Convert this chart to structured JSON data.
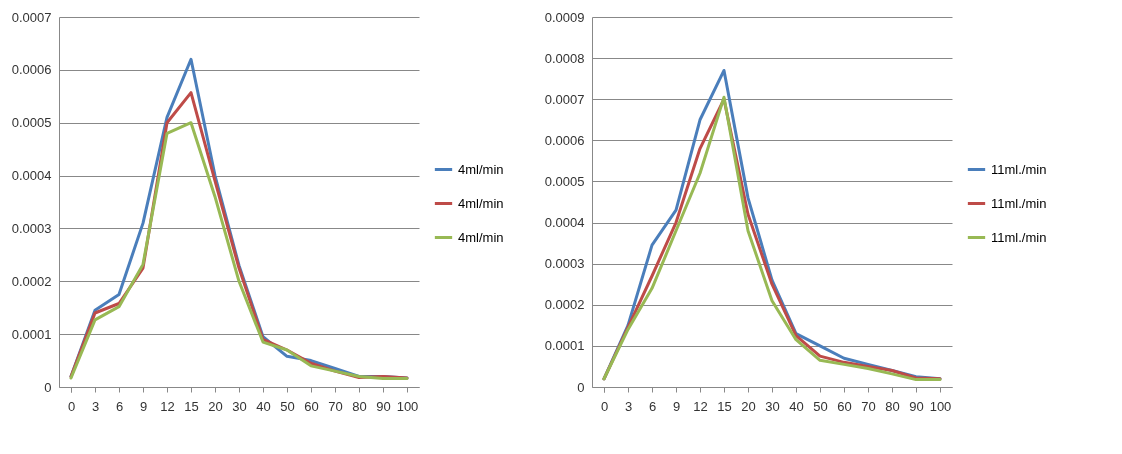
{
  "chart_data": [
    {
      "type": "line",
      "categories": [
        "0",
        "3",
        "6",
        "9",
        "12",
        "15",
        "20",
        "30",
        "40",
        "50",
        "60",
        "70",
        "80",
        "90",
        "100"
      ],
      "ylim": [
        0,
        0.0007
      ],
      "yticks": [
        0,
        0.0001,
        0.0002,
        0.0003,
        0.0004,
        0.0005,
        0.0006,
        0.0007
      ],
      "grid": "y",
      "legend": "right",
      "line_style": "solid",
      "series": [
        {
          "name": "4ml/min",
          "color": "#4a7ebb",
          "values": [
            2e-05,
            0.000145,
            0.000175,
            0.00031,
            0.00051,
            0.00062,
            0.0004,
            0.00023,
            9.5e-05,
            5.8e-05,
            5e-05,
            3.5e-05,
            2e-05,
            2e-05,
            1.7e-05
          ]
        },
        {
          "name": "4ml/min",
          "color": "#be4b48",
          "values": [
            2e-05,
            0.00014,
            0.000158,
            0.000225,
            0.0005,
            0.000557,
            0.00039,
            0.000225,
            9e-05,
            7e-05,
            4.5e-05,
            3e-05,
            1.8e-05,
            2e-05,
            1.7e-05
          ]
        },
        {
          "name": "4ml/min",
          "color": "#98b954",
          "values": [
            1.7e-05,
            0.000127,
            0.000152,
            0.000232,
            0.00048,
            0.0005,
            0.00036,
            0.0002,
            8.5e-05,
            7e-05,
            4e-05,
            3e-05,
            2e-05,
            1.6e-05,
            1.6e-05
          ]
        }
      ]
    },
    {
      "type": "line",
      "categories": [
        "0",
        "3",
        "6",
        "9",
        "12",
        "15",
        "20",
        "30",
        "40",
        "50",
        "60",
        "70",
        "80",
        "90",
        "100"
      ],
      "ylim": [
        0,
        0.0009
      ],
      "yticks": [
        0,
        0.0001,
        0.0002,
        0.0003,
        0.0004,
        0.0005,
        0.0006,
        0.0007,
        0.0008,
        0.0009
      ],
      "grid": "y",
      "legend": "right",
      "line_style": "solid",
      "series": [
        {
          "name": "11ml./min",
          "color": "#4a7ebb",
          "values": [
            2e-05,
            0.00015,
            0.000345,
            0.00043,
            0.00065,
            0.00077,
            0.00046,
            0.00026,
            0.00013,
            0.0001,
            7e-05,
            5.5e-05,
            4e-05,
            2.5e-05,
            2e-05
          ]
        },
        {
          "name": "11ml./min",
          "color": "#be4b48",
          "values": [
            2e-05,
            0.000145,
            0.00027,
            0.0004,
            0.00058,
            0.0007,
            0.00042,
            0.00025,
            0.000125,
            7.5e-05,
            6e-05,
            5e-05,
            4e-05,
            2.2e-05,
            2e-05
          ]
        },
        {
          "name": "11ml./min",
          "color": "#98b954",
          "values": [
            2e-05,
            0.00014,
            0.00024,
            0.00038,
            0.00052,
            0.000705,
            0.00038,
            0.00021,
            0.000115,
            6.5e-05,
            5.5e-05,
            4.5e-05,
            3.2e-05,
            1.8e-05,
            1.8e-05
          ]
        }
      ]
    }
  ]
}
